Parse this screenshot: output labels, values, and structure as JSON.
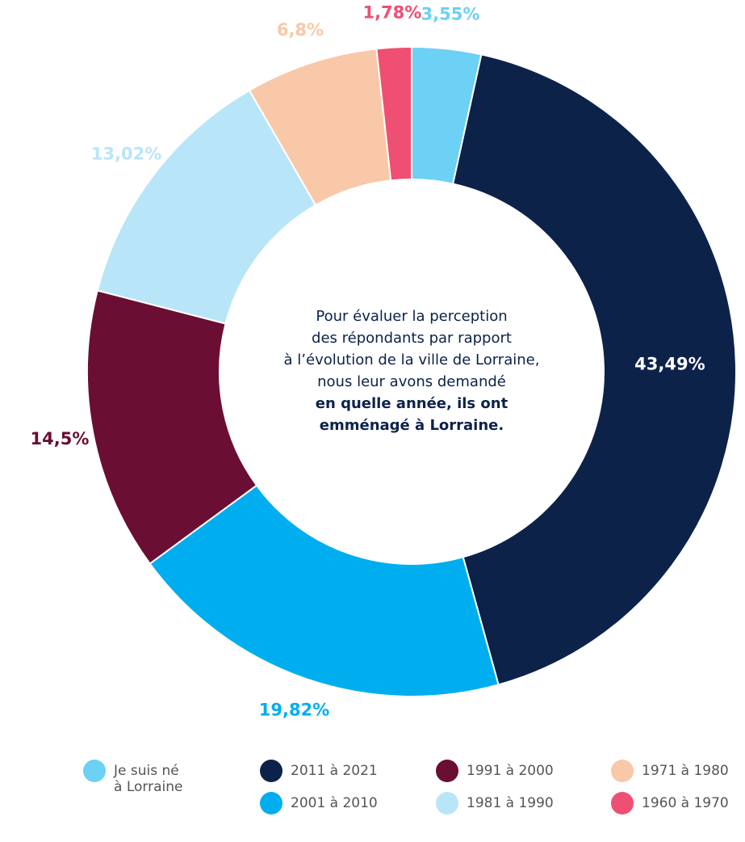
{
  "chart_data": {
    "type": "donut",
    "categories": [
      "Je suis né à Lorraine",
      "2011 à 2021",
      "2001 à 2010",
      "1991 à 2000",
      "1981 à 1990",
      "1971 à 1980",
      "1960 à 1970"
    ],
    "values": [
      3.55,
      43.49,
      19.82,
      14.5,
      13.02,
      6.8,
      1.78
    ],
    "value_labels": [
      "3,55%",
      "43,49%",
      "19,82%",
      "14,5%",
      "13,02%",
      "6,8%",
      "1,78%"
    ],
    "colors": [
      "#6dd0f5",
      "#0c2249",
      "#00aeef",
      "#6b0e33",
      "#b9e5f8",
      "#f9c8a8",
      "#ee4f72"
    ],
    "annotation": {
      "lines": [
        "Pour évaluer la perception",
        "des répondants par rapport",
        "à l’évolution de la ville de Lorraine,",
        "nous leur avons demandé"
      ],
      "bold_lines": [
        "en quelle année, ils ont",
        "emménagé à Lorraine."
      ]
    }
  }
}
